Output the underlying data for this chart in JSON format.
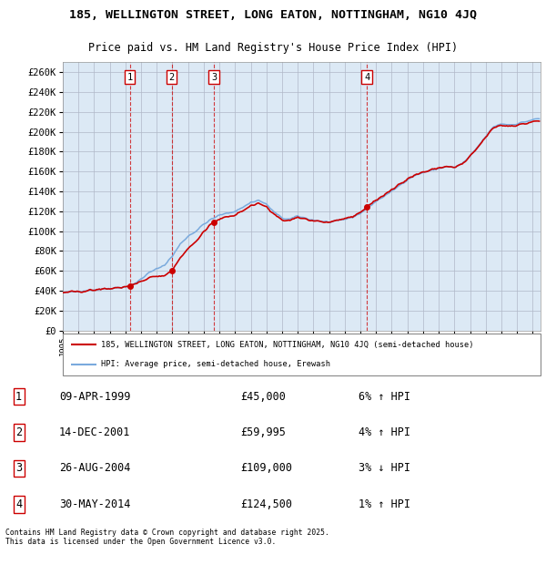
{
  "title1": "185, WELLINGTON STREET, LONG EATON, NOTTINGHAM, NG10 4JQ",
  "title2": "Price paid vs. HM Land Registry's House Price Index (HPI)",
  "bg_color": "#dce9f5",
  "legend_line1": "185, WELLINGTON STREET, LONG EATON, NOTTINGHAM, NG10 4JQ (semi-detached house)",
  "legend_line2": "HPI: Average price, semi-detached house, Erewash",
  "transactions": [
    {
      "num": 1,
      "date": "09-APR-1999",
      "price": 45000,
      "year": 1999.27,
      "pct": "6%",
      "dir": "↑"
    },
    {
      "num": 2,
      "date": "14-DEC-2001",
      "price": 59995,
      "year": 2001.95,
      "pct": "4%",
      "dir": "↑"
    },
    {
      "num": 3,
      "date": "26-AUG-2004",
      "price": 109000,
      "year": 2004.65,
      "pct": "3%",
      "dir": "↓"
    },
    {
      "num": 4,
      "date": "30-MAY-2014",
      "price": 124500,
      "year": 2014.41,
      "pct": "1%",
      "dir": "↑"
    }
  ],
  "footer": "Contains HM Land Registry data © Crown copyright and database right 2025.\nThis data is licensed under the Open Government Licence v3.0.",
  "red_line_color": "#cc0000",
  "blue_line_color": "#7aaadd",
  "ylim": [
    0,
    270000
  ],
  "ytick_step": 20000,
  "xstart": 1995.0,
  "xend": 2025.5
}
